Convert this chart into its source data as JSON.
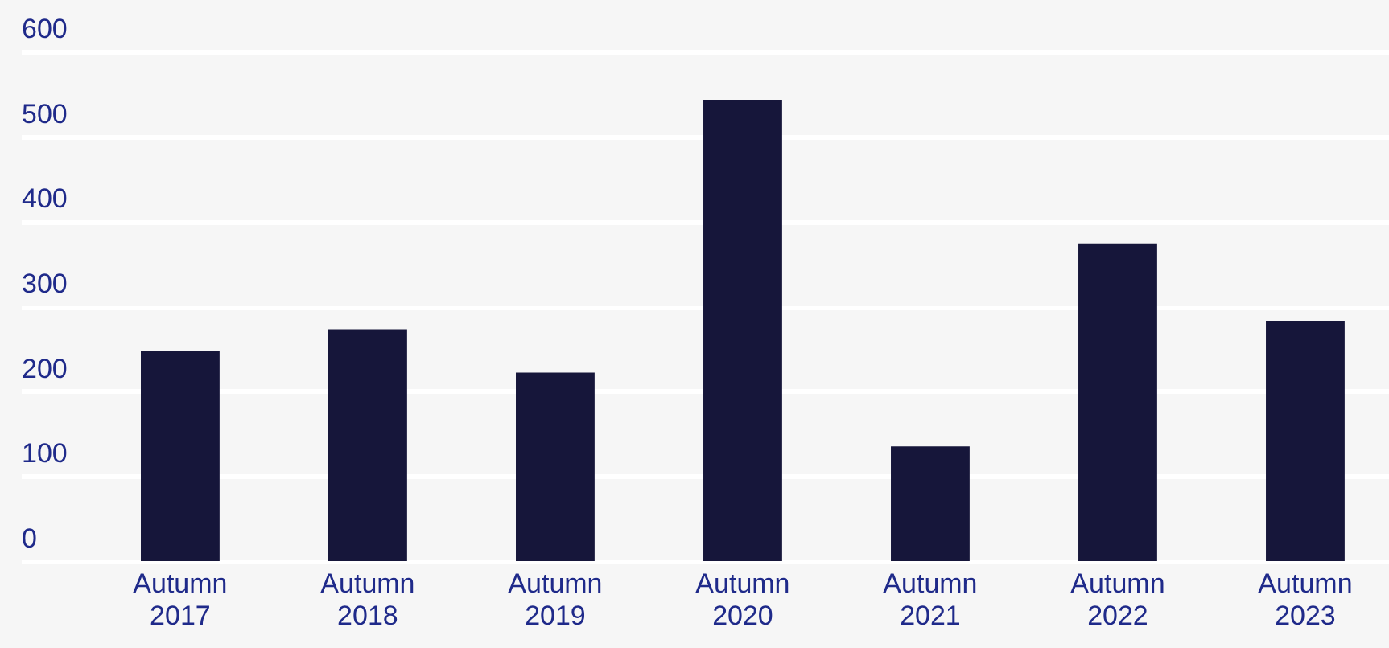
{
  "chart_data": {
    "type": "bar",
    "categories": [
      "Autumn 2017",
      "Autumn 2018",
      "Autumn 2019",
      "Autumn 2020",
      "Autumn 2021",
      "Autumn 2022",
      "Autumn 2023"
    ],
    "values": [
      247,
      273,
      222,
      543,
      135,
      374,
      283
    ],
    "color": "#16163a",
    "ylim": [
      0,
      600
    ],
    "yticks": [
      0,
      100,
      200,
      300,
      400,
      500,
      600
    ],
    "grid": "y"
  }
}
